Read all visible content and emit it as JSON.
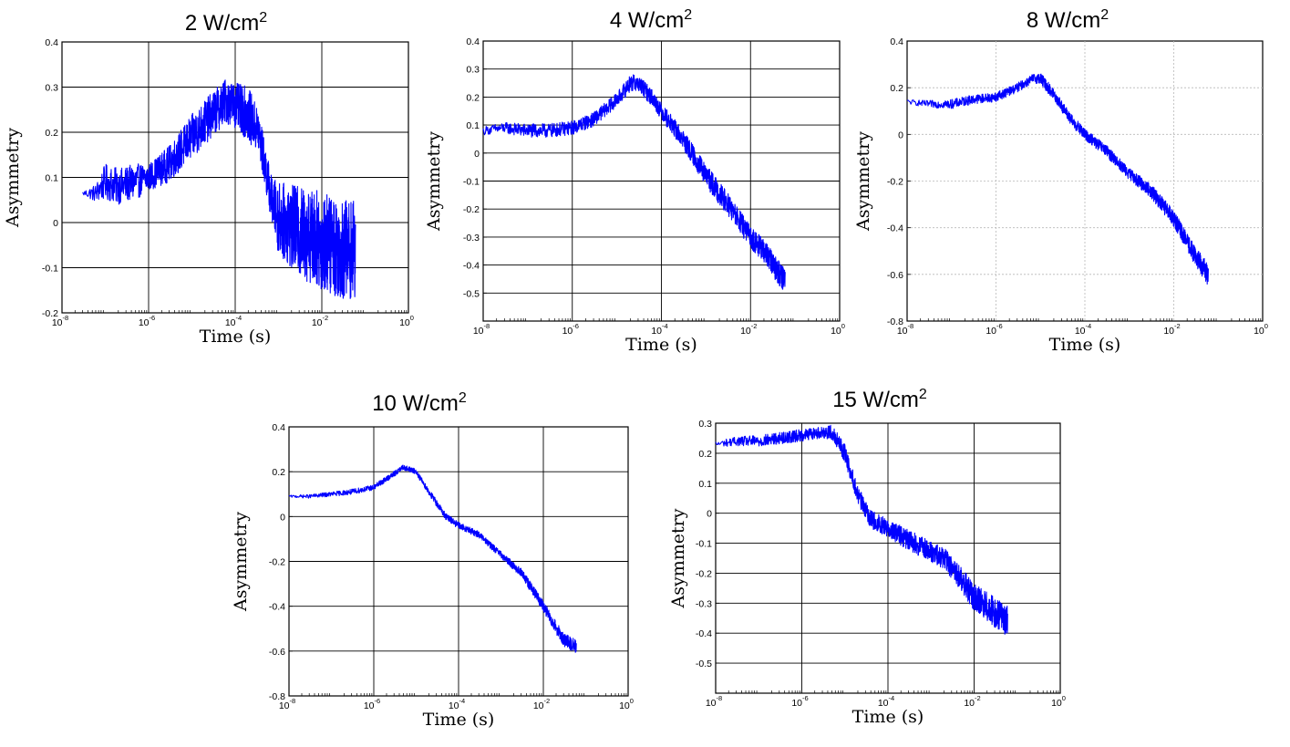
{
  "chart_data": [
    {
      "type": "line",
      "title_main": "2 W/cm",
      "title_sup": "2",
      "xlabel": "Time (s)",
      "ylabel": "Asymmetry",
      "xscale": "log",
      "xlim": [
        1e-08,
        1
      ],
      "ylim": [
        -0.2,
        0.4
      ],
      "xticks": [
        -8,
        -6,
        -4,
        -2,
        0
      ],
      "yticks": [
        0.4,
        0.3,
        0.2,
        0.1,
        0,
        -0.1,
        -0.2
      ],
      "ytick_labels": [
        "0.4",
        "0.3",
        "0.2",
        "0.1",
        "0",
        "-0.1",
        "-0.2"
      ],
      "grid": true,
      "grid_style": "solid",
      "series": [
        {
          "color": "#0000ff",
          "x": [
            3e-08,
            6e-08,
            1e-07,
            2e-07,
            5e-07,
            1e-06,
            3e-06,
            1e-05,
            3e-05,
            6e-05,
            0.0001,
            0.0002,
            0.00035,
            0.0005,
            0.0007,
            0.001,
            0.003,
            0.01,
            0.03,
            0.06
          ],
          "y": [
            0.065,
            0.065,
            0.09,
            0.08,
            0.09,
            0.1,
            0.13,
            0.19,
            0.24,
            0.27,
            0.26,
            0.24,
            0.2,
            0.12,
            0.05,
            0.01,
            -0.02,
            -0.04,
            -0.06,
            -0.06
          ],
          "noise": [
            0.005,
            0.02,
            0.04,
            0.04,
            0.04,
            0.03,
            0.04,
            0.05,
            0.05,
            0.05,
            0.05,
            0.06,
            0.05,
            0.05,
            0.05,
            0.08,
            0.1,
            0.11,
            0.11,
            0.11
          ]
        }
      ]
    },
    {
      "type": "line",
      "title_main": "4 W/cm",
      "title_sup": "2",
      "xlabel": "Time (s)",
      "ylabel": "Asymmetry",
      "xscale": "log",
      "xlim": [
        1e-08,
        1
      ],
      "ylim": [
        -0.6,
        0.4
      ],
      "xticks": [
        -8,
        -6,
        -4,
        -2,
        0
      ],
      "yticks": [
        0.4,
        0.3,
        0.2,
        0.1,
        0,
        -0.1,
        -0.2,
        -0.3,
        -0.4,
        -0.5
      ],
      "ytick_labels": [
        "0.4",
        "0.3",
        "0.2",
        "0.1",
        "0",
        "-0.1",
        "-0.2",
        "-0.3",
        "-0.4",
        "-0.5"
      ],
      "grid": true,
      "grid_style": "solid",
      "series": [
        {
          "color": "#0000ff",
          "x": [
            1e-08,
            3e-08,
            1e-07,
            3e-07,
            1e-06,
            3e-06,
            1e-05,
            2e-05,
            3e-05,
            6e-05,
            0.0001,
            0.0003,
            0.001,
            0.003,
            0.01,
            0.02,
            0.04,
            0.06
          ],
          "y": [
            0.08,
            0.09,
            0.08,
            0.08,
            0.09,
            0.12,
            0.19,
            0.25,
            0.25,
            0.2,
            0.15,
            0.05,
            -0.08,
            -0.18,
            -0.3,
            -0.35,
            -0.42,
            -0.45
          ],
          "noise": [
            0.015,
            0.02,
            0.025,
            0.025,
            0.025,
            0.025,
            0.025,
            0.03,
            0.03,
            0.03,
            0.03,
            0.035,
            0.04,
            0.04,
            0.04,
            0.04,
            0.045,
            0.05
          ]
        }
      ]
    },
    {
      "type": "line",
      "title_main": "8 W/cm",
      "title_sup": "2",
      "xlabel": "Time (s)",
      "ylabel": "Asymmetry",
      "xscale": "log",
      "xlim": [
        1e-08,
        1
      ],
      "ylim": [
        -0.8,
        0.4
      ],
      "xticks": [
        -8,
        -6,
        -4,
        -2,
        0
      ],
      "yticks": [
        0.4,
        0.2,
        0,
        -0.2,
        -0.4,
        -0.6,
        -0.8
      ],
      "ytick_labels": [
        "0.4",
        "0.2",
        "0",
        "-0.2",
        "-0.4",
        "-0.6",
        "-0.8"
      ],
      "grid": true,
      "grid_style": "dotted",
      "series": [
        {
          "color": "#0000ff",
          "x": [
            1e-08,
            3e-08,
            1e-07,
            3e-07,
            1e-06,
            3e-06,
            7e-06,
            1e-05,
            2e-05,
            5e-05,
            0.0001,
            0.0003,
            0.001,
            0.003,
            0.01,
            0.03,
            0.06
          ],
          "y": [
            0.14,
            0.13,
            0.13,
            0.15,
            0.16,
            0.2,
            0.24,
            0.24,
            0.17,
            0.06,
            0.0,
            -0.07,
            -0.17,
            -0.24,
            -0.36,
            -0.52,
            -0.6
          ],
          "noise": [
            0.01,
            0.015,
            0.02,
            0.02,
            0.02,
            0.02,
            0.02,
            0.025,
            0.025,
            0.025,
            0.025,
            0.025,
            0.025,
            0.03,
            0.035,
            0.04,
            0.05
          ]
        }
      ]
    },
    {
      "type": "line",
      "title_main": "10 W/cm",
      "title_sup": "2",
      "xlabel": "Time (s)",
      "ylabel": "Asymmetry",
      "xscale": "log",
      "xlim": [
        1e-08,
        1
      ],
      "ylim": [
        -0.8,
        0.4
      ],
      "xticks": [
        -8,
        -6,
        -4,
        -2,
        0
      ],
      "yticks": [
        0.4,
        0.2,
        0,
        -0.2,
        -0.4,
        -0.6,
        -0.8
      ],
      "ytick_labels": [
        "0.4",
        "0.2",
        "0",
        "-0.2",
        "-0.4",
        "-0.6",
        "-0.8"
      ],
      "grid": true,
      "grid_style": "solid",
      "series": [
        {
          "color": "#0000ff",
          "x": [
            1e-08,
            3e-08,
            1e-07,
            3e-07,
            1e-06,
            3e-06,
            5e-06,
            1e-05,
            2e-05,
            5e-05,
            0.0001,
            0.0003,
            0.001,
            0.003,
            0.01,
            0.03,
            0.06
          ],
          "y": [
            0.09,
            0.09,
            0.1,
            0.11,
            0.13,
            0.19,
            0.22,
            0.2,
            0.11,
            0.0,
            -0.04,
            -0.08,
            -0.17,
            -0.25,
            -0.4,
            -0.55,
            -0.58
          ],
          "noise": [
            0.005,
            0.008,
            0.01,
            0.012,
            0.012,
            0.012,
            0.012,
            0.012,
            0.015,
            0.015,
            0.015,
            0.015,
            0.015,
            0.02,
            0.025,
            0.03,
            0.03
          ]
        }
      ]
    },
    {
      "type": "line",
      "title_main": "15 W/cm",
      "title_sup": "2",
      "xlabel": "Time (s)",
      "ylabel": "Asymmetry",
      "xscale": "log",
      "xlim": [
        1e-08,
        1
      ],
      "ylim": [
        -0.6,
        0.3
      ],
      "xticks": [
        -8,
        -6,
        -4,
        -2,
        0
      ],
      "yticks": [
        0.3,
        0.2,
        0.1,
        0,
        -0.1,
        -0.2,
        -0.3,
        -0.4,
        -0.5
      ],
      "ytick_labels": [
        "0.3",
        "0.2",
        "0.1",
        "0",
        "-0.1",
        "-0.2",
        "-0.3",
        "-0.4",
        "-0.5"
      ],
      "grid": true,
      "grid_style": "solid",
      "series": [
        {
          "color": "#0000ff",
          "x": [
            1e-08,
            3e-08,
            1e-07,
            3e-07,
            1e-06,
            3e-06,
            5e-06,
            1e-05,
            2e-05,
            4e-05,
            0.0001,
            0.0003,
            0.001,
            0.002,
            0.005,
            0.01,
            0.03,
            0.06
          ],
          "y": [
            0.23,
            0.24,
            0.24,
            0.25,
            0.26,
            0.27,
            0.27,
            0.2,
            0.06,
            -0.02,
            -0.05,
            -0.09,
            -0.13,
            -0.15,
            -0.22,
            -0.28,
            -0.33,
            -0.36
          ],
          "noise": [
            0.01,
            0.015,
            0.02,
            0.02,
            0.02,
            0.02,
            0.025,
            0.03,
            0.03,
            0.03,
            0.03,
            0.035,
            0.035,
            0.035,
            0.04,
            0.045,
            0.05,
            0.05
          ]
        }
      ]
    }
  ]
}
